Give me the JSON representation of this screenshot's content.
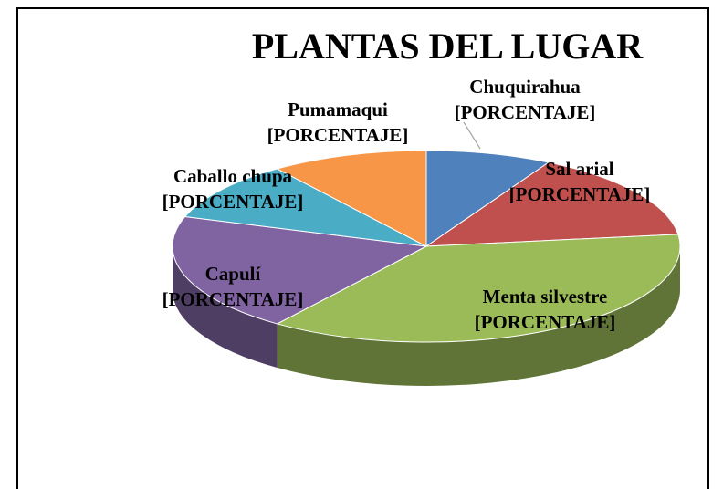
{
  "chart_data": {
    "type": "pie3d",
    "title": "PLANTAS DEL LUGAR",
    "categories": [
      "Chuquirahua",
      "Sal arial",
      "Menta silvestre",
      "Capulí",
      "Caballo chupa",
      "Pumamaqui"
    ],
    "values": [
      8,
      15,
      37,
      20,
      10,
      10
    ],
    "data_labels": [
      "[PORCENTAJE]",
      "[PORCENTAJE]",
      "[PORCENTAJE]",
      "[PORCENTAJE]",
      "[PORCENTAJE]",
      "[PORCENTAJE]"
    ],
    "colors": [
      "#4f81bd",
      "#c0504d",
      "#9bbb59",
      "#8064a2",
      "#4bacc6",
      "#f79646"
    ]
  }
}
